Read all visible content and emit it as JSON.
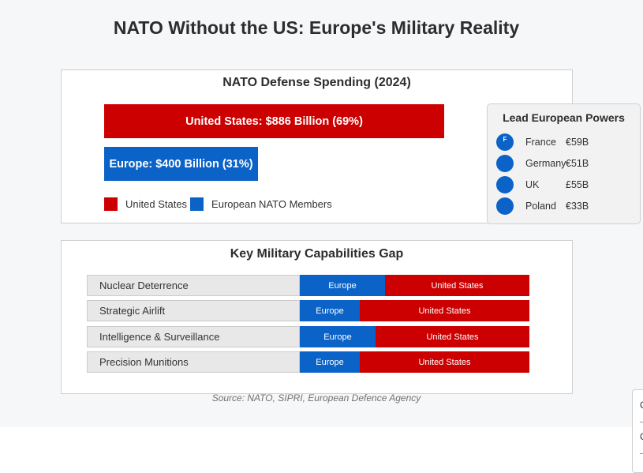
{
  "title": "NATO Without the US: Europe's Military Reality",
  "spending": {
    "title": "NATO Defense Spending (2024)",
    "bars": [
      {
        "label": "United States: $886 Billion (69%)",
        "value": 886,
        "percent": 69,
        "color": "#cc0000"
      },
      {
        "label": "Europe: $400 Billion (31%)",
        "value": 400,
        "percent": 31,
        "color": "#0b63c8"
      }
    ],
    "legend": [
      {
        "label": "United States",
        "color": "#cc0000"
      },
      {
        "label": "European NATO Members",
        "color": "#0b63c8"
      }
    ]
  },
  "lead_powers": {
    "title": "Lead European Powers",
    "items": [
      {
        "flag_text": "F",
        "name": "France",
        "value": "€59B"
      },
      {
        "flag_text": "",
        "name": "Germany",
        "value": "€51B"
      },
      {
        "flag_text": "",
        "name": "UK",
        "value": "£55B"
      },
      {
        "flag_text": "",
        "name": "Poland",
        "value": "€33B"
      }
    ]
  },
  "capabilities": {
    "title": "Key Military Capabilities Gap",
    "europe_label": "Europe",
    "us_label": "United States",
    "europe_color": "#0b63c8",
    "us_color": "#cc0000",
    "rows": [
      {
        "name": "Nuclear Deterrence",
        "europe_share": 0.37
      },
      {
        "name": "Strategic Airlift",
        "europe_share": 0.26
      },
      {
        "name": "Intelligence & Surveillance",
        "europe_share": 0.33
      },
      {
        "name": "Precision Munitions",
        "europe_share": 0.26
      }
    ]
  },
  "source": "Source: NATO, SIPRI, European Defence Agency",
  "chart_data": [
    {
      "type": "bar",
      "title": "NATO Defense Spending (2024)",
      "categories": [
        "United States",
        "Europe"
      ],
      "values": [
        886,
        400
      ],
      "percentages": [
        69,
        31
      ],
      "unit": "Billion $",
      "legend": [
        "United States",
        "European NATO Members"
      ]
    },
    {
      "type": "bar",
      "title": "Key Military Capabilities Gap",
      "categories": [
        "Nuclear Deterrence",
        "Strategic Airlift",
        "Intelligence & Surveillance",
        "Precision Munitions"
      ],
      "series": [
        {
          "name": "Europe",
          "values": [
            0.37,
            0.26,
            0.33,
            0.26
          ]
        },
        {
          "name": "United States",
          "values": [
            0.63,
            0.74,
            0.67,
            0.74
          ]
        }
      ],
      "stacked": true
    }
  ]
}
